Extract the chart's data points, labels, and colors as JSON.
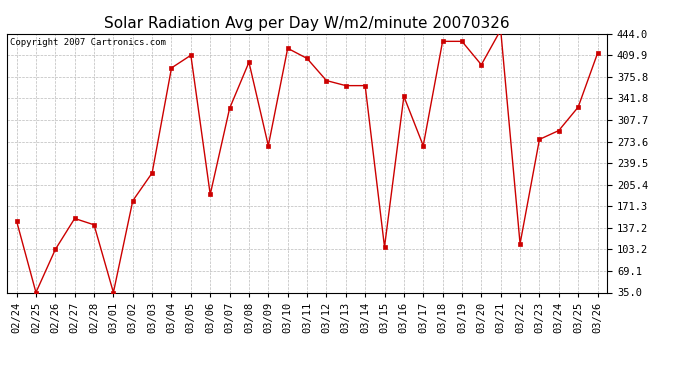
{
  "title": "Solar Radiation Avg per Day W/m2/minute 20070326",
  "copyright_text": "Copyright 2007 Cartronics.com",
  "dates_list": [
    "02/24",
    "02/25",
    "02/26",
    "02/27",
    "02/28",
    "03/01",
    "03/02",
    "03/03",
    "03/04",
    "03/05",
    "03/06",
    "03/07",
    "03/08",
    "03/09",
    "03/10",
    "03/11",
    "03/12",
    "03/13",
    "03/14",
    "03/15",
    "03/16",
    "03/17",
    "03/18",
    "03/19",
    "03/20",
    "03/21",
    "03/22",
    "03/23",
    "03/24",
    "03/25",
    "03/26"
  ],
  "values_list": [
    148.0,
    35.0,
    103.0,
    152.0,
    142.0,
    35.0,
    180.0,
    224.0,
    390.0,
    410.0,
    190.0,
    326.0,
    399.0,
    267.0,
    421.0,
    405.0,
    370.0,
    362.0,
    362.0,
    107.0,
    345.0,
    267.0,
    432.0,
    432.0,
    395.0,
    450.0,
    112.0,
    277.0,
    291.0,
    328.0,
    413.0
  ],
  "line_color": "#cc0000",
  "marker_color": "#cc0000",
  "background_color": "#ffffff",
  "grid_color": "#bbbbbb",
  "ylim": [
    35.0,
    444.0
  ],
  "yticks": [
    35.0,
    69.1,
    103.2,
    137.2,
    171.3,
    205.4,
    239.5,
    273.6,
    307.7,
    341.8,
    375.8,
    409.9,
    444.0
  ],
  "ytick_labels": [
    "35.0",
    "69.1",
    "103.2",
    "137.2",
    "171.3",
    "205.4",
    "239.5",
    "273.6",
    "307.7",
    "341.8",
    "375.8",
    "409.9",
    "444.0"
  ],
  "title_fontsize": 11,
  "copyright_fontsize": 6.5,
  "tick_fontsize": 7.5
}
